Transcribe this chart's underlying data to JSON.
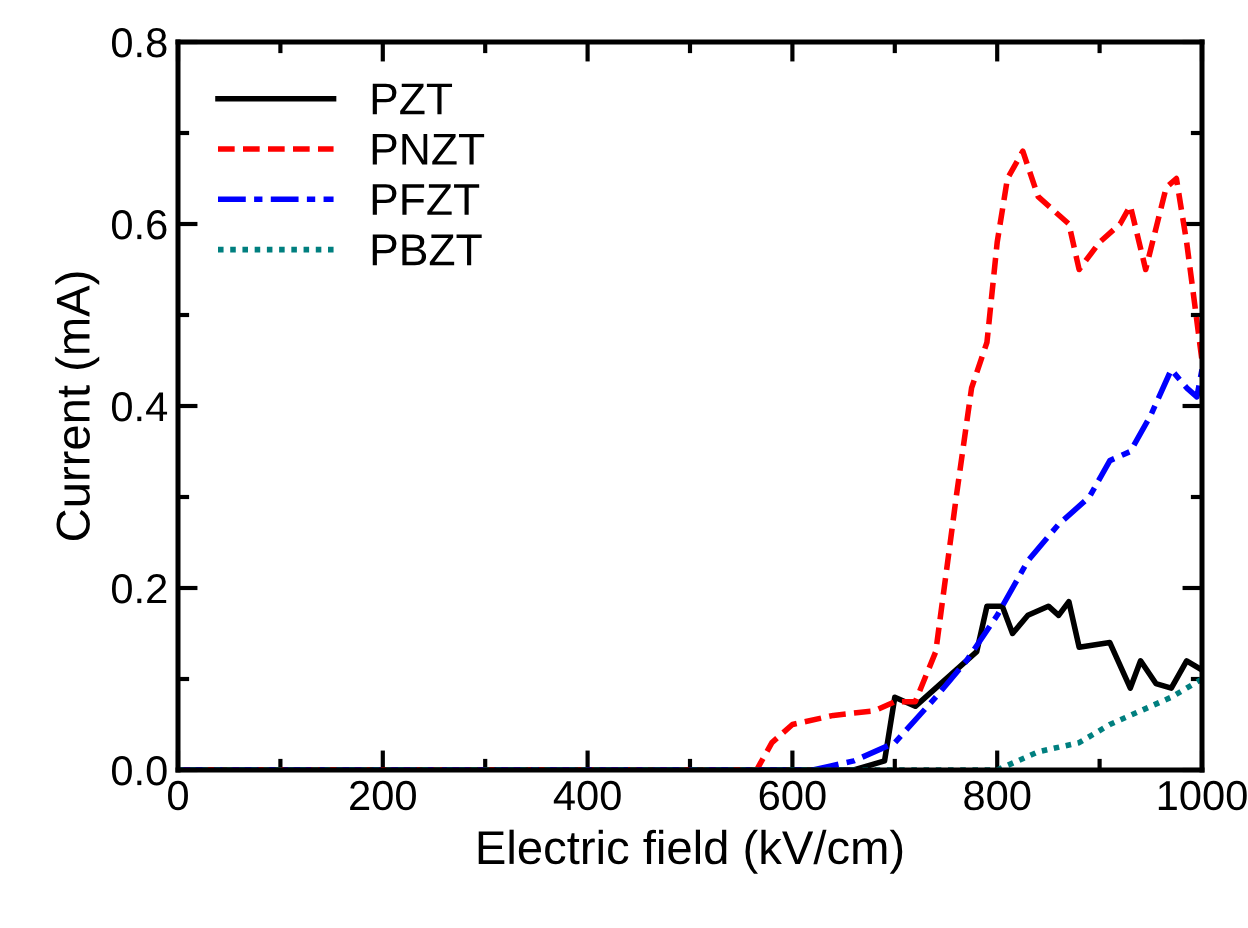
{
  "chart_data": {
    "type": "line",
    "xlabel": "Electric field (kV/cm)",
    "ylabel": "Current (mA)",
    "xlim": [
      0,
      1000
    ],
    "ylim": [
      0,
      0.8
    ],
    "xticks": [
      0,
      200,
      400,
      600,
      800,
      1000
    ],
    "yticks": [
      {
        "value": 0,
        "label": "0.0"
      },
      0.2,
      0.4,
      0.6,
      0.8
    ],
    "legend": "top left",
    "grid": false,
    "series": [
      {
        "name": "PZT",
        "color": "#000000",
        "line_style": "solid",
        "x": [
          0,
          660,
          690,
          700,
          720,
          740,
          760,
          780,
          790,
          805,
          815,
          830,
          850,
          860,
          870,
          880,
          910,
          930,
          940,
          955,
          970,
          985,
          1000
        ],
        "values": [
          0,
          0,
          0.01,
          0.08,
          0.07,
          0.09,
          0.11,
          0.13,
          0.18,
          0.18,
          0.15,
          0.17,
          0.18,
          0.17,
          0.185,
          0.135,
          0.14,
          0.09,
          0.12,
          0.095,
          0.09,
          0.12,
          0.11
        ]
      },
      {
        "name": "PNZT",
        "color": "#ff0000",
        "line_style": "dashed",
        "x": [
          0,
          565,
          580,
          600,
          640,
          680,
          700,
          720,
          740,
          760,
          775,
          790,
          800,
          810,
          825,
          840,
          870,
          880,
          900,
          920,
          930,
          945,
          965,
          975,
          985,
          1000
        ],
        "values": [
          0,
          0,
          0.03,
          0.05,
          0.06,
          0.065,
          0.075,
          0.075,
          0.13,
          0.3,
          0.42,
          0.47,
          0.58,
          0.65,
          0.68,
          0.63,
          0.6,
          0.55,
          0.58,
          0.6,
          0.62,
          0.55,
          0.64,
          0.65,
          0.58,
          0.45
        ]
      },
      {
        "name": "PFZT",
        "color": "#0000ff",
        "line_style": "dashdot",
        "x": [
          0,
          620,
          660,
          700,
          740,
          770,
          800,
          830,
          860,
          890,
          910,
          930,
          950,
          970,
          985,
          995,
          1000
        ],
        "values": [
          0,
          0,
          0.01,
          0.03,
          0.08,
          0.12,
          0.17,
          0.23,
          0.27,
          0.3,
          0.34,
          0.35,
          0.39,
          0.44,
          0.42,
          0.41,
          0.44
        ]
      },
      {
        "name": "PBZT",
        "color": "#007f7f",
        "line_style": "dotted",
        "x": [
          0,
          800,
          840,
          880,
          910,
          940,
          970,
          1000
        ],
        "values": [
          0,
          0,
          0.02,
          0.03,
          0.05,
          0.065,
          0.08,
          0.1
        ]
      }
    ]
  }
}
